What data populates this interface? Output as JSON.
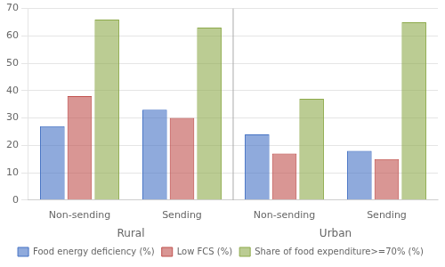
{
  "chart_data": {
    "type": "bar",
    "categories": [
      "Non-sending",
      "Sending",
      "Non-sending",
      "Sending"
    ],
    "series": [
      {
        "name": "Food energy deficiency (%)",
        "color": "#4472C4",
        "values": [
          27,
          33,
          24,
          18
        ]
      },
      {
        "name": "Low FCS (%)",
        "color": "#C0504D",
        "values": [
          38,
          30,
          17,
          15
        ]
      },
      {
        "name": "Share of food expenditure>=70% (%)",
        "color": "#8DAA4B",
        "values": [
          66,
          63,
          37,
          65
        ]
      }
    ],
    "annotations": [
      "Rural",
      "Urban"
    ],
    "ylim": [
      0,
      70
    ],
    "yticks": [
      0,
      10,
      20,
      30,
      40,
      50,
      60,
      70
    ],
    "grid": true,
    "legend": "bottom"
  }
}
